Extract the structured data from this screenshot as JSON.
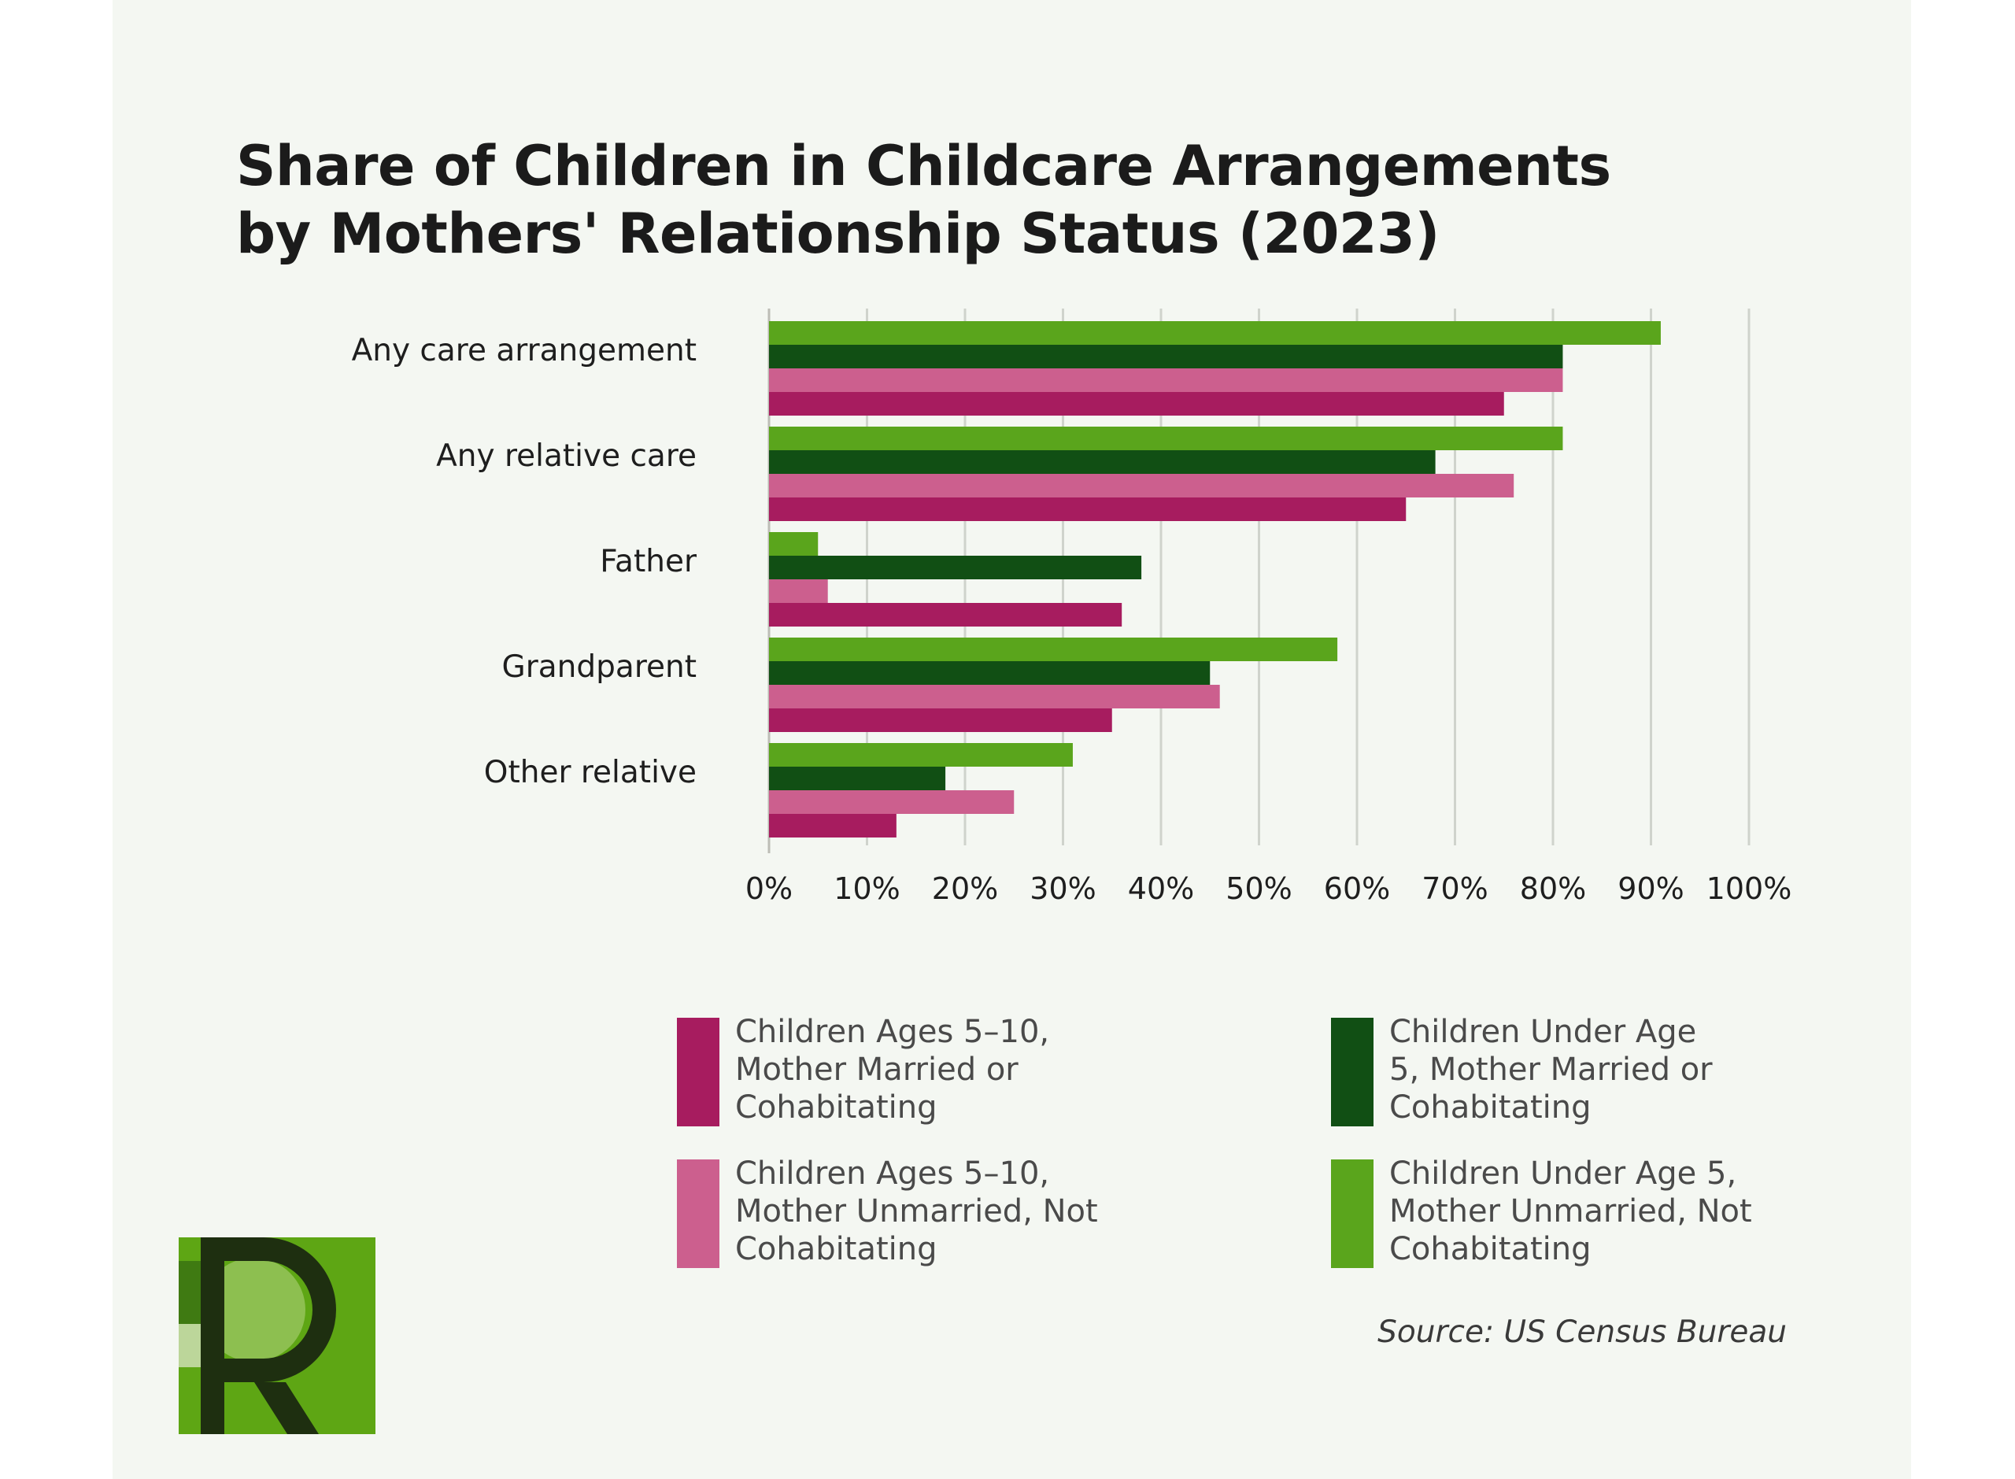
{
  "chart_data": {
    "type": "bar",
    "orientation": "horizontal",
    "title_lines": [
      "Share of Children in Childcare Arrangements",
      "by Mothers' Relationship Status (2023)"
    ],
    "categories": [
      "Any care arrangement",
      "Any relative care",
      "Father",
      "Grandparent",
      "Other relative"
    ],
    "series": [
      {
        "name": "Children Under Age 5, Mother Unmarried, Not Cohabitating",
        "color": "#5aa51c",
        "values": [
          91,
          81,
          5,
          58,
          31
        ]
      },
      {
        "name": "Children Under Age 5, Mother Married or Cohabitating",
        "color": "#114f14",
        "values": [
          81,
          68,
          38,
          45,
          18
        ]
      },
      {
        "name": "Children Ages 5–10, Mother Unmarried, Not Cohabitating",
        "color": "#cc5f8e",
        "values": [
          81,
          76,
          6,
          46,
          25
        ]
      },
      {
        "name": "Children Ages 5–10, Mother Married or Cohabitating",
        "color": "#a71c5f",
        "values": [
          75,
          65,
          36,
          35,
          13
        ]
      }
    ],
    "xlim": [
      0,
      100
    ],
    "xticks": [
      "0%",
      "10%",
      "20%",
      "30%",
      "40%",
      "50%",
      "60%",
      "70%",
      "80%",
      "90%",
      "100%"
    ],
    "grid": "vertical",
    "legend_placement": "bottom"
  },
  "legend": [
    {
      "lines": [
        "Children Ages 5–10,",
        "Mother Married or",
        "Cohabitating"
      ],
      "color": "#a71c5f"
    },
    {
      "lines": [
        "Children Under Age",
        "5, Mother Married or",
        "Cohabitating"
      ],
      "color": "#114f14"
    },
    {
      "lines": [
        "Children Ages 5–10,",
        "Mother Unmarried, Not",
        "Cohabitating"
      ],
      "color": "#cc5f8e"
    },
    {
      "lines": [
        "Children Under Age 5,",
        "Mother Unmarried, Not",
        "Cohabitating"
      ],
      "color": "#5aa51c"
    }
  ],
  "source": "Source: US Census Bureau",
  "logo": {
    "icon": "r-logo-icon",
    "bg_color": "#5ea614",
    "letter_color": "#1e2f10",
    "circle_color": "#8dbf50"
  }
}
